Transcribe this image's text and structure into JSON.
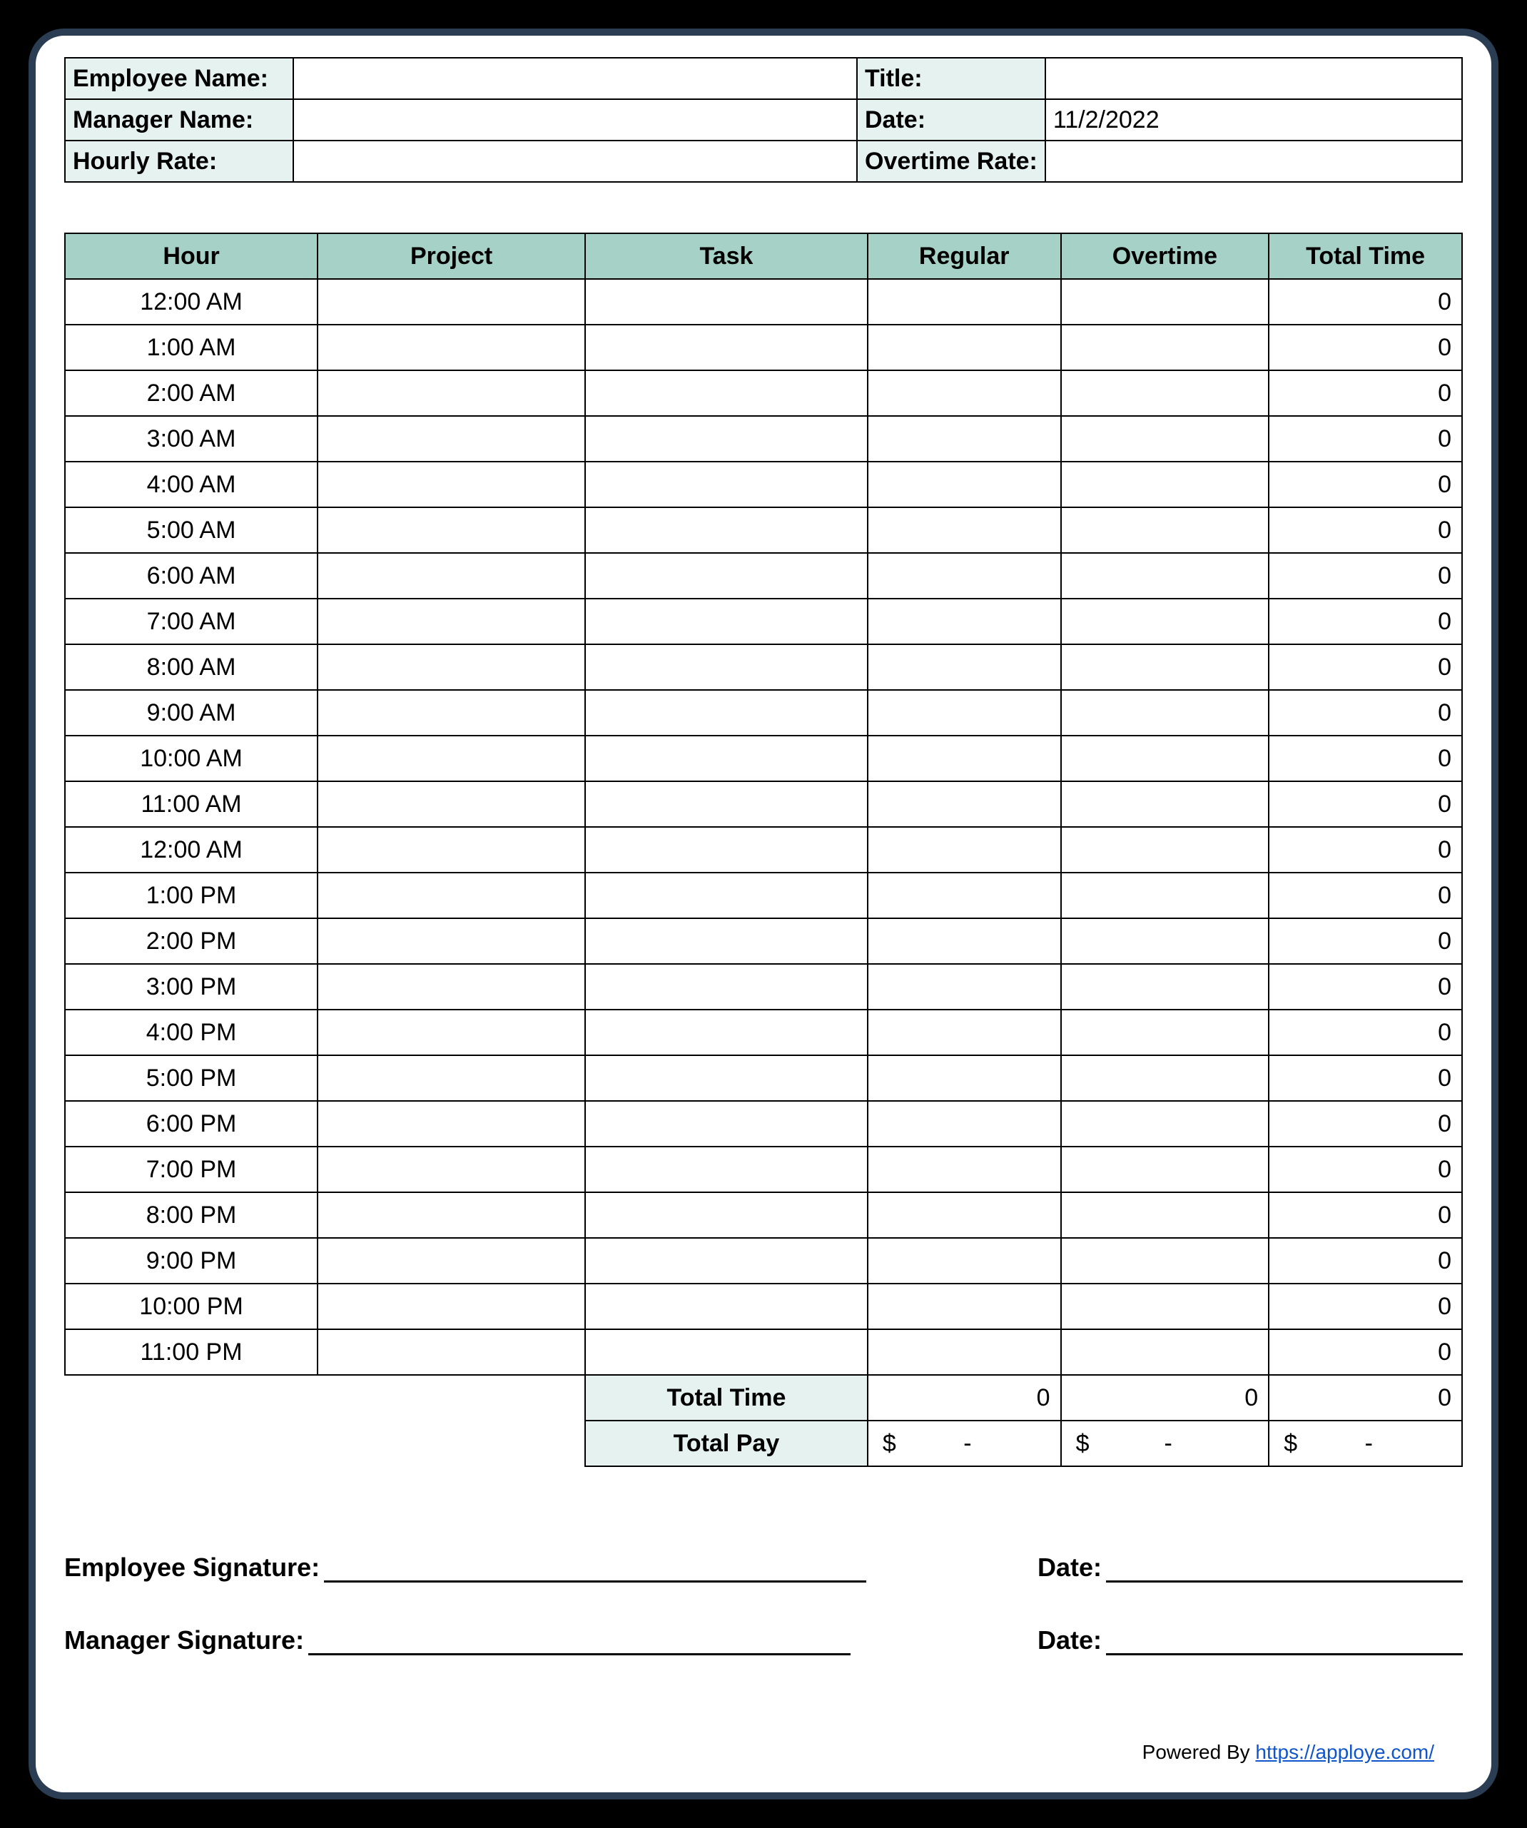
{
  "info": {
    "employee_name_label": "Employee Name:",
    "employee_name_value": "",
    "title_label": "Title:",
    "title_value": "",
    "manager_name_label": "Manager Name:",
    "manager_name_value": "",
    "date_label": "Date:",
    "date_value": "11/2/2022",
    "hourly_rate_label": "Hourly Rate:",
    "hourly_rate_value": "",
    "overtime_rate_label": "Overtime Rate:",
    "overtime_rate_value": ""
  },
  "columns": {
    "hour": "Hour",
    "project": "Project",
    "task": "Task",
    "regular": "Regular",
    "overtime": "Overtime",
    "total_time": "Total Time"
  },
  "rows": [
    {
      "hour": "12:00 AM",
      "project": "",
      "task": "",
      "regular": "",
      "overtime": "",
      "total": "0"
    },
    {
      "hour": "1:00 AM",
      "project": "",
      "task": "",
      "regular": "",
      "overtime": "",
      "total": "0"
    },
    {
      "hour": "2:00 AM",
      "project": "",
      "task": "",
      "regular": "",
      "overtime": "",
      "total": "0"
    },
    {
      "hour": "3:00 AM",
      "project": "",
      "task": "",
      "regular": "",
      "overtime": "",
      "total": "0"
    },
    {
      "hour": "4:00 AM",
      "project": "",
      "task": "",
      "regular": "",
      "overtime": "",
      "total": "0"
    },
    {
      "hour": "5:00 AM",
      "project": "",
      "task": "",
      "regular": "",
      "overtime": "",
      "total": "0"
    },
    {
      "hour": "6:00 AM",
      "project": "",
      "task": "",
      "regular": "",
      "overtime": "",
      "total": "0"
    },
    {
      "hour": "7:00 AM",
      "project": "",
      "task": "",
      "regular": "",
      "overtime": "",
      "total": "0"
    },
    {
      "hour": "8:00 AM",
      "project": "",
      "task": "",
      "regular": "",
      "overtime": "",
      "total": "0"
    },
    {
      "hour": "9:00 AM",
      "project": "",
      "task": "",
      "regular": "",
      "overtime": "",
      "total": "0"
    },
    {
      "hour": "10:00 AM",
      "project": "",
      "task": "",
      "regular": "",
      "overtime": "",
      "total": "0"
    },
    {
      "hour": "11:00 AM",
      "project": "",
      "task": "",
      "regular": "",
      "overtime": "",
      "total": "0"
    },
    {
      "hour": "12:00 AM",
      "project": "",
      "task": "",
      "regular": "",
      "overtime": "",
      "total": "0"
    },
    {
      "hour": "1:00 PM",
      "project": "",
      "task": "",
      "regular": "",
      "overtime": "",
      "total": "0"
    },
    {
      "hour": "2:00 PM",
      "project": "",
      "task": "",
      "regular": "",
      "overtime": "",
      "total": "0"
    },
    {
      "hour": "3:00 PM",
      "project": "",
      "task": "",
      "regular": "",
      "overtime": "",
      "total": "0"
    },
    {
      "hour": "4:00 PM",
      "project": "",
      "task": "",
      "regular": "",
      "overtime": "",
      "total": "0"
    },
    {
      "hour": "5:00 PM",
      "project": "",
      "task": "",
      "regular": "",
      "overtime": "",
      "total": "0"
    },
    {
      "hour": "6:00 PM",
      "project": "",
      "task": "",
      "regular": "",
      "overtime": "",
      "total": "0"
    },
    {
      "hour": "7:00 PM",
      "project": "",
      "task": "",
      "regular": "",
      "overtime": "",
      "total": "0"
    },
    {
      "hour": "8:00 PM",
      "project": "",
      "task": "",
      "regular": "",
      "overtime": "",
      "total": "0"
    },
    {
      "hour": "9:00 PM",
      "project": "",
      "task": "",
      "regular": "",
      "overtime": "",
      "total": "0"
    },
    {
      "hour": "10:00 PM",
      "project": "",
      "task": "",
      "regular": "",
      "overtime": "",
      "total": "0"
    },
    {
      "hour": "11:00 PM",
      "project": "",
      "task": "",
      "regular": "",
      "overtime": "",
      "total": "0"
    }
  ],
  "summary": {
    "total_time_label": "Total Time",
    "total_regular": "0",
    "total_overtime": "0",
    "total_total": "0",
    "total_pay_label": "Total Pay",
    "pay_currency": "$",
    "pay_dash": "-"
  },
  "signatures": {
    "employee_label": "Employee Signature:",
    "manager_label": "Manager Signature:",
    "date_label": "Date:"
  },
  "footer": {
    "powered_by": "Powered By ",
    "link_text": "https://apploye.com/"
  },
  "styling": {
    "header_bg": "#a6d1c6",
    "label_bg": "#e6f2f0",
    "border_color": "#000000",
    "sheet_border": "#2a3d52",
    "link_color": "#1155cc",
    "font_size_body": 34,
    "font_size_sig": 36
  }
}
